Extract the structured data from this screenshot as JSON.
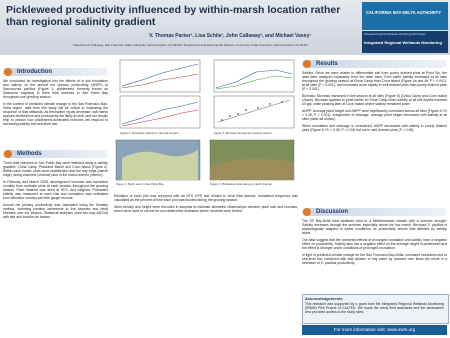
{
  "header": {
    "title": "Pickleweed productivity influenced by within-marsh location rather than regional salinity gradient",
    "authors": "V. Thomas Parker¹, Lisa Schile², John Callaway², and Michael Vasey¹",
    "affiliations": "¹ Department of Biology, San Francisco State University, San Francisco, CA 94132    ² Department of Environmental Science, University of San Francisco, San Francisco, CA 94117",
    "logo": {
      "org": "CALIFORNIA BAY-DELTA AUTHORITY",
      "sub": "Integrated Regional Wetlands Monitoring Pilot Project",
      "program": "Integrated Regional Wetlands Monitoring"
    }
  },
  "sections": {
    "introduction": {
      "heading": "Introduction",
      "paragraphs": [
        "We conducted an investigation into the effects of in situ inundation and salinity on the annual net primary productivity (ANPP) of Sarcocornia pacifica (Figure 1; pickleweed; formerly known as Salicornia virginica) in three tidal marshes in San Pablo Bay throughout one growing season.",
        "In the context of predicted climate change in the San Francisco Bay-Delta region, data from this study will be critical to evaluating the response of tidal wetlands. As freshwater inputs decrease, salt marsh species distributions and productivity are likely to shift, and our results help to predict how pickleweed-dominated marshes will respond to increasing salinity and sea-level rise."
      ]
    },
    "methods": {
      "heading": "Methods",
      "paragraphs": [
        "Three tidal marshes in San Pablo Bay were selected along a salinity gradient: China Camp, Petaluma Marsh and Coon Island (Figure 2). Within each marsh, plots were established near the bay edge (marsh edge), along channels (channel) and in the marsh interior (interior).",
        "In February and March 2005, aboveground biomass was harvested monthly from replicate plots at each location throughout the growing season. Plant material was dried at 60°C and weighed. Porewater salinity was measured at each visit and inundation was estimated from elevation surveys and tide gauge records.",
        "Annual net primary productivity was calculated using the Smalley method, summing positive increments in live biomass and dead biomass over the season. Statistical analyses used two-way ANOVA with site and location as factors."
      ]
    },
    "middle": {
      "paragraphs": [
        "Elevation of each plot was surveyed with an RTK GPS and related to local tidal datums. Inundation frequency was calculated as the percent of time each plot was flooded during the growing season.",
        "Stem density and height were recorded in subplots to estimate allometric relationships between plant size and biomass, which were used to correct for non-destructive estimates where harvests were limited."
      ]
    },
    "results": {
      "heading": "Results",
      "paragraphs": [
        "Salinity: Since we were unable to differentiate salt from poorly drained plots at Point Six, the data were analyzed separately from the other sites. Pore water salinity increased at all sites throughout the growing season at China Camp than Coon Island (Figure 4a and 4b; P < 0.001), at all sites (P < 0.001), and increased more rapidly in well-drained plots than poorly drained plots (P < 0.001).",
        "Biomass: Biomass increased in live season at all sites (Figure 5) (China Camp and Coon Island shown). Biomass appears to peak earlier at China Camp when salinity at all soil depths exceeds 40 ppt, while peaking later at Coon Island where salinity remained lower.",
        "ANPP: Average plant height and ANPP were significantly correlated across all sites (Figure 6; R² = 0.39, P < 0.001). Irrespective of drainage, average plant height decreased with salinity at all sites (data not shown).",
        "When inundation and drainage is considered, ANPP decreased with salinity in poorly drained plots (Figure 6; R² = 0.38, P < 0.05) but not in well-drained plots (P = 0.48)."
      ]
    },
    "discussion": {
      "heading": "Discussion",
      "paragraphs": [
        "The SF Bay-Delta tidal wetlands exist in a Mediterranean climate with a summer drought. Salinity increases through the summer, especially above the low marsh. Because S. pacifica is physiologically adapted to saline conditions, its productivity seems little affected by salinity alone.",
        "Our data suggest that the combined effects of prolonged inundation and salinity have a negative effect on productivity. Salinity also has a negative effect on the average height of pickleweed and the effect is stronger under conditions of prolonged inundation.",
        "In light of predicted climate change for the San Francisco Bay-Delta, increased inundation due to sea-level rise combined with less dilution of bay water by reduced river flows will result in a decrease of S. pacifica productivity."
      ]
    },
    "acknowledgements": {
      "heading": "Acknowledgements",
      "text": "This research was supported by a grant from the Integrated Regional Wetlands Monitoring (IRWM) Pilot Project of CALFED. We thank the many field assistants and the landowners who provided access to the study sites."
    }
  },
  "figures": {
    "captions": [
      "Figure 4. Porewater salinity by site and location",
      "Figure 5. Biomass through the growing season",
      "Figure 2. Study sites in San Pablo Bay",
      "Figure 3. Pickleweed plots along a marsh channel"
    ]
  },
  "footer": "For more information visit: www.irwm.org"
}
